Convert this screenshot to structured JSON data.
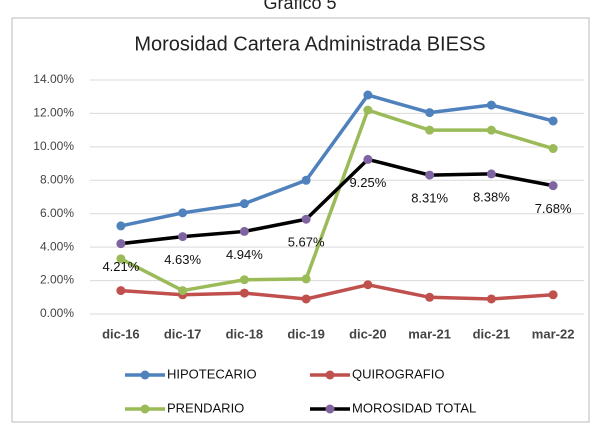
{
  "chart_data": {
    "type": "line",
    "heading": "Gráfico 5",
    "title": "Morosidad Cartera Administrada BIESS",
    "categories": [
      "dic-16",
      "dic-17",
      "dic-18",
      "dic-19",
      "dic-20",
      "mar-21",
      "dic-21",
      "mar-22"
    ],
    "series": [
      {
        "name": "HIPOTECARIO",
        "color": "#4f81bd",
        "values": [
          5.27,
          6.05,
          6.6,
          8.0,
          13.1,
          12.05,
          12.5,
          11.55
        ]
      },
      {
        "name": "QUIROGRAFIO",
        "color": "#c0504d",
        "values": [
          1.4,
          1.15,
          1.25,
          0.9,
          1.75,
          1.0,
          0.9,
          1.15
        ]
      },
      {
        "name": "PRENDARIO",
        "color": "#9bbb59",
        "values": [
          3.3,
          1.4,
          2.05,
          2.1,
          12.2,
          11.0,
          11.0,
          9.9
        ]
      },
      {
        "name": "MOROSIDAD TOTAL",
        "color": "#000000",
        "marker_color": "#8064a2",
        "values": [
          4.21,
          4.63,
          4.94,
          5.67,
          9.25,
          8.31,
          8.38,
          7.68
        ],
        "value_labels": [
          "4.21%",
          "4.63%",
          "4.94%",
          "5.67%",
          "9.25%",
          "8.31%",
          "8.38%",
          "7.68%"
        ]
      }
    ],
    "ylim": [
      0,
      14
    ],
    "yticks": [
      {
        "value": 0,
        "label": "0.00%"
      },
      {
        "value": 2,
        "label": "2.00%"
      },
      {
        "value": 4,
        "label": "4.00%"
      },
      {
        "value": 6,
        "label": "6.00%"
      },
      {
        "value": 8,
        "label": "8.00%"
      },
      {
        "value": 10,
        "label": "10.00%"
      },
      {
        "value": 12,
        "label": "12.00%"
      },
      {
        "value": 14,
        "label": "14.00%"
      }
    ],
    "grid": true,
    "legend": "bottom"
  }
}
